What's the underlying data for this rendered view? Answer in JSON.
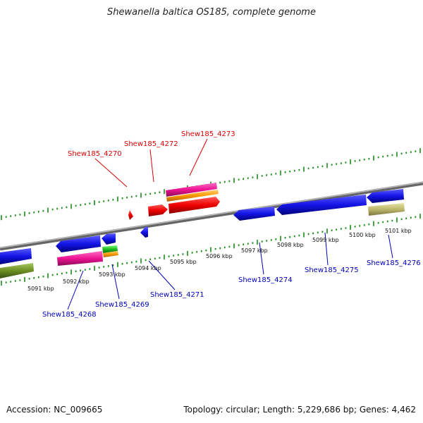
{
  "title": "Shewanella baltica OS185, complete genome",
  "footer": {
    "accession": "Accession: NC_009665",
    "summary": "Topology: circular; Length: 5,229,686 bp; Genes: 4,462"
  },
  "scale_labels": [
    "5091 kbp",
    "5092 kbp",
    "5093 kbp",
    "5094 kbp",
    "5095 kbp",
    "5096 kbp",
    "5097 kbp",
    "5098 kbp",
    "5099 kbp",
    "5100 kbp",
    "5101 kbp"
  ],
  "gene_labels_top": [
    "Shew185_4270",
    "Shew185_4272",
    "Shew185_4273"
  ],
  "gene_labels_bottom": [
    "Shew185_4268",
    "Shew185_4269",
    "Shew185_4271",
    "Shew185_4274",
    "Shew185_4275",
    "Shew185_4276"
  ],
  "colors": {
    "top_label": "#dd0000",
    "bottom_label": "#0000bb",
    "backbone": "#888888",
    "tick": "#1a8a1a",
    "blue": "#1414e6",
    "red": "#ee0000",
    "pink": "#ee1493",
    "orange": "#ff9a00",
    "green": "#22bb22",
    "olive": "#6b8e23",
    "khaki": "#bdb76b"
  }
}
